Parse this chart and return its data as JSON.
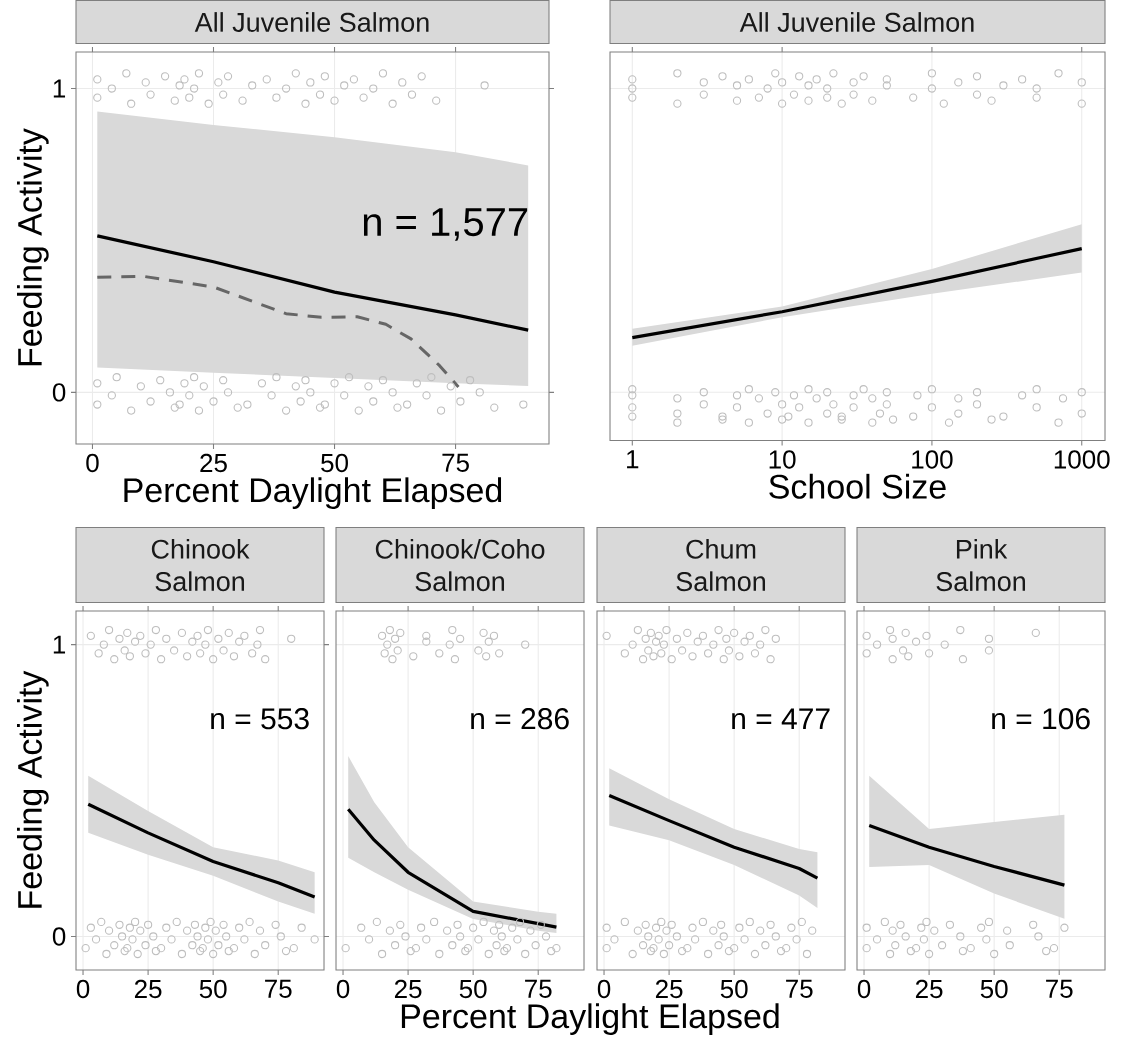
{
  "chart_data": [
    {
      "type": "line",
      "title": "All Juvenile Salmon",
      "xlabel": "Percent Daylight Elapsed",
      "ylabel": "Feeding Activity",
      "xlim": [
        -3.4,
        94.3
      ],
      "ylim": [
        -0.17,
        1.12
      ],
      "xticks": [
        0,
        25,
        50,
        75
      ],
      "yticks": [
        0,
        1
      ],
      "grid": true,
      "annotations": [
        "n = 1,577"
      ],
      "series": [
        {
          "type": "scatter",
          "marker": "circle",
          "color": "#bebebe",
          "x": [
            1,
            1,
            4,
            7,
            8,
            11,
            12,
            15,
            17,
            18,
            19,
            20,
            21,
            22,
            24,
            26,
            27,
            28,
            31,
            33,
            36,
            38,
            40,
            42,
            44,
            45,
            47,
            48,
            50,
            52,
            54,
            56,
            58,
            60,
            62,
            64,
            66,
            68,
            71,
            81
          ],
          "values": [
            1.03,
            0.97,
            1.0,
            1.05,
            0.95,
            1.02,
            0.98,
            1.04,
            0.96,
            1.01,
            1.03,
            0.97,
            1.0,
            1.05,
            0.95,
            1.02,
            0.98,
            1.04,
            0.96,
            1.01,
            1.03,
            0.97,
            1.0,
            1.05,
            0.95,
            1.02,
            0.98,
            1.04,
            0.96,
            1.01,
            1.03,
            0.97,
            1.0,
            1.05,
            0.95,
            1.02,
            0.98,
            1.04,
            0.96,
            1.01
          ]
        },
        {
          "type": "scatter",
          "marker": "circle",
          "color": "#bebebe",
          "x": [
            1,
            1,
            4,
            5,
            8,
            10,
            12,
            14,
            16,
            17,
            18,
            19,
            20,
            21,
            22,
            23,
            25,
            27,
            28,
            30,
            32,
            35,
            37,
            38,
            40,
            42,
            43,
            44,
            45,
            47,
            48,
            50,
            52,
            53,
            55,
            57,
            58,
            60,
            62,
            63,
            65,
            67,
            69,
            70,
            72,
            74,
            76,
            78,
            80,
            83,
            89
          ],
          "values": [
            -0.04,
            0.03,
            -0.01,
            0.05,
            -0.06,
            0.02,
            -0.03,
            0.04,
            0.0,
            -0.05,
            -0.04,
            0.03,
            -0.01,
            0.05,
            -0.06,
            0.02,
            -0.03,
            0.04,
            0.0,
            -0.05,
            -0.04,
            0.03,
            -0.01,
            0.05,
            -0.06,
            0.02,
            -0.03,
            0.04,
            0.0,
            -0.05,
            -0.04,
            0.03,
            -0.01,
            0.05,
            -0.06,
            0.02,
            -0.03,
            0.04,
            0.0,
            -0.05,
            -0.04,
            0.03,
            -0.01,
            0.05,
            -0.06,
            0.02,
            -0.03,
            0.04,
            0.0,
            -0.05,
            -0.04
          ]
        },
        {
          "type": "line",
          "color": "#000000",
          "x": [
            1,
            25,
            50,
            75,
            90
          ],
          "values": [
            0.515,
            0.43,
            0.33,
            0.255,
            0.205
          ],
          "upper": [
            0.924,
            0.88,
            0.84,
            0.79,
            0.747
          ],
          "lower": [
            0.082,
            0.065,
            0.047,
            0.03,
            0.021
          ]
        },
        {
          "type": "line",
          "color": "#666666",
          "line_style": "dashed",
          "x": [
            1,
            10.5,
            25,
            40,
            47.3,
            54.7,
            60.6,
            65.8,
            71.7,
            75.6
          ],
          "values": [
            0.379,
            0.382,
            0.347,
            0.259,
            0.247,
            0.249,
            0.224,
            0.176,
            0.088,
            0.018
          ]
        }
      ]
    },
    {
      "type": "line",
      "title": "All Juvenile Salmon",
      "xlabel": "School Size",
      "log": "x",
      "xlim": [
        0.71,
        1430
      ],
      "ylim": [
        -0.159,
        1.12
      ],
      "xticks": [
        1,
        10,
        100,
        1000
      ],
      "yticks": [
        0,
        1
      ],
      "grid": true,
      "tick_labels": "x",
      "series": [
        {
          "type": "scatter",
          "marker": "circle",
          "color": "#bebebe",
          "x": [
            1,
            1,
            1,
            2,
            2,
            3,
            3,
            4,
            5,
            5,
            6,
            7,
            8,
            9,
            10,
            10,
            12,
            13,
            15,
            15,
            17,
            20,
            20,
            22,
            25,
            30,
            30,
            35,
            40,
            50,
            50,
            75,
            100,
            100,
            120,
            150,
            200,
            200,
            250,
            300,
            400,
            500,
            500,
            700,
            1000,
            1000
          ],
          "values": [
            1.03,
            0.97,
            1.0,
            1.05,
            0.95,
            1.02,
            0.98,
            1.04,
            0.96,
            1.01,
            1.03,
            0.97,
            1.0,
            1.05,
            0.95,
            1.02,
            0.98,
            1.04,
            0.96,
            1.01,
            1.03,
            0.97,
            1.0,
            1.05,
            0.95,
            1.02,
            0.98,
            1.04,
            0.96,
            1.01,
            1.03,
            0.97,
            1.0,
            1.05,
            0.95,
            1.02,
            0.98,
            1.04,
            0.96,
            1.01,
            1.03,
            0.97,
            1.0,
            1.05,
            0.95,
            1.02
          ]
        },
        {
          "type": "scatter",
          "marker": "circle",
          "color": "#bebebe",
          "x": [
            1,
            1,
            1,
            1,
            2,
            2,
            2,
            3,
            3,
            4,
            4,
            5,
            5,
            6,
            6,
            7,
            8,
            9,
            10,
            10,
            11,
            12,
            13,
            15,
            15,
            17,
            20,
            20,
            22,
            25,
            25,
            30,
            30,
            35,
            40,
            40,
            45,
            50,
            50,
            55,
            75,
            80,
            100,
            100,
            130,
            150,
            150,
            200,
            200,
            250,
            300,
            400,
            500,
            500,
            700,
            750,
            1000,
            1000
          ],
          "values": [
            -0.08,
            -0.01,
            -0.05,
            0.01,
            -0.1,
            -0.02,
            -0.07,
            0.0,
            -0.04,
            -0.09,
            -0.08,
            -0.01,
            -0.05,
            0.01,
            -0.1,
            -0.02,
            -0.07,
            0.0,
            -0.04,
            -0.09,
            -0.08,
            -0.01,
            -0.05,
            0.01,
            -0.1,
            -0.02,
            -0.07,
            0.0,
            -0.04,
            -0.09,
            -0.08,
            -0.01,
            -0.05,
            0.01,
            -0.1,
            -0.02,
            -0.07,
            0.0,
            -0.04,
            -0.09,
            -0.08,
            -0.01,
            -0.05,
            0.01,
            -0.1,
            -0.02,
            -0.07,
            0.0,
            -0.04,
            -0.09,
            -0.08,
            -0.01,
            -0.05,
            0.01,
            -0.1,
            -0.02,
            -0.07,
            0.0
          ]
        },
        {
          "type": "line",
          "color": "#000000",
          "x": [
            1,
            10,
            100,
            1000
          ],
          "values": [
            0.18,
            0.265,
            0.365,
            0.473
          ],
          "upper": [
            0.209,
            0.282,
            0.406,
            0.553
          ],
          "lower": [
            0.153,
            0.247,
            0.324,
            0.394
          ]
        }
      ]
    },
    {
      "type": "line",
      "title": "Chinook Salmon",
      "ylabel": "Feeding Activity",
      "xlim": [
        -2.7,
        92.6
      ],
      "ylim": [
        -0.115,
        1.115
      ],
      "xticks": [
        0,
        25,
        50,
        75
      ],
      "yticks": [
        0,
        1
      ],
      "grid": true,
      "annotations": [
        "n = 553"
      ],
      "series": [
        {
          "type": "scatter",
          "marker": "circle",
          "color": "#bebebe",
          "x": [
            3,
            6,
            8,
            10,
            12,
            14,
            16,
            17,
            18,
            20,
            22,
            24,
            26,
            28,
            30,
            32,
            35,
            38,
            40,
            42,
            44,
            45,
            47,
            48,
            50,
            52,
            54,
            56,
            58,
            60,
            62,
            65,
            67,
            68,
            70,
            80
          ],
          "values": [
            1.03,
            0.97,
            1.0,
            1.05,
            0.95,
            1.02,
            0.98,
            1.04,
            0.96,
            1.01,
            1.03,
            0.97,
            1.0,
            1.05,
            0.95,
            1.02,
            0.98,
            1.04,
            0.96,
            1.01,
            1.03,
            0.97,
            1.0,
            1.05,
            0.95,
            1.02,
            0.98,
            1.04,
            0.96,
            1.01,
            1.03,
            0.97,
            1.0,
            1.05,
            0.95,
            1.02
          ]
        },
        {
          "type": "scatter",
          "marker": "circle",
          "color": "#bebebe",
          "x": [
            1,
            3,
            5,
            7,
            9,
            10,
            12,
            14,
            15,
            16,
            17,
            18,
            19,
            20,
            21,
            22,
            24,
            25,
            27,
            28,
            30,
            32,
            34,
            36,
            38,
            40,
            42,
            43,
            44,
            45,
            46,
            47,
            48,
            49,
            50,
            51,
            52,
            54,
            55,
            56,
            58,
            60,
            62,
            64,
            66,
            68,
            70,
            74,
            76,
            78,
            81,
            84,
            89
          ],
          "values": [
            -0.04,
            0.03,
            -0.01,
            0.05,
            -0.06,
            0.02,
            -0.03,
            0.04,
            0.0,
            -0.05,
            -0.04,
            0.03,
            -0.01,
            0.05,
            -0.06,
            0.02,
            -0.03,
            0.04,
            0.0,
            -0.05,
            -0.04,
            0.03,
            -0.01,
            0.05,
            -0.06,
            0.02,
            -0.03,
            0.04,
            0.0,
            -0.05,
            -0.04,
            0.03,
            -0.01,
            0.05,
            -0.06,
            0.02,
            -0.03,
            0.04,
            0.0,
            -0.05,
            -0.04,
            0.03,
            -0.01,
            0.05,
            -0.06,
            0.02,
            -0.03,
            0.04,
            0.0,
            -0.05,
            -0.04,
            0.03,
            -0.01
          ]
        },
        {
          "type": "line",
          "color": "#000000",
          "x": [
            2,
            25,
            50,
            75,
            89
          ],
          "values": [
            0.453,
            0.355,
            0.257,
            0.184,
            0.135
          ],
          "upper": [
            0.551,
            0.43,
            0.306,
            0.26,
            0.22
          ],
          "lower": [
            0.355,
            0.28,
            0.208,
            0.12,
            0.078
          ]
        }
      ]
    },
    {
      "type": "line",
      "title": "Chinook/Coho Salmon",
      "xlabel": "Percent Daylight Elapsed",
      "xlim": [
        -2.7,
        92.6
      ],
      "ylim": [
        -0.115,
        1.115
      ],
      "xticks": [
        0,
        25,
        50,
        75
      ],
      "yticks": [
        0,
        1
      ],
      "grid": true,
      "tick_labels": "x",
      "annotations": [
        "n = 286"
      ],
      "series": [
        {
          "type": "scatter",
          "marker": "circle",
          "color": "#bebebe",
          "x": [
            15,
            16,
            17,
            18,
            19,
            20,
            21,
            22,
            27,
            32,
            32,
            37,
            41,
            42,
            43,
            45,
            52,
            54,
            55,
            56,
            58,
            60,
            70
          ],
          "values": [
            1.03,
            0.97,
            1.0,
            1.05,
            0.95,
            1.02,
            0.98,
            1.04,
            0.96,
            1.01,
            1.03,
            0.97,
            1.0,
            1.05,
            0.95,
            1.02,
            0.98,
            1.04,
            0.96,
            1.01,
            1.03,
            0.97,
            1.0
          ]
        },
        {
          "type": "scatter",
          "marker": "circle",
          "color": "#bebebe",
          "x": [
            1,
            7,
            10,
            13,
            15,
            18,
            20,
            22,
            24,
            26,
            28,
            30,
            32,
            35,
            37,
            40,
            42,
            44,
            45,
            47,
            48,
            50,
            52,
            54,
            56,
            58,
            59,
            60,
            61,
            62,
            63,
            65,
            67,
            68,
            70,
            72,
            74,
            76,
            78,
            80,
            82
          ],
          "values": [
            -0.04,
            0.03,
            -0.01,
            0.05,
            -0.06,
            0.02,
            -0.03,
            0.04,
            0.0,
            -0.05,
            -0.04,
            0.03,
            -0.01,
            0.05,
            -0.06,
            0.02,
            -0.03,
            0.04,
            0.0,
            -0.05,
            -0.04,
            0.03,
            -0.01,
            0.05,
            -0.06,
            0.02,
            -0.03,
            0.04,
            0.0,
            -0.05,
            -0.04,
            0.03,
            -0.01,
            0.05,
            -0.06,
            0.02,
            -0.03,
            0.04,
            0.0,
            -0.05,
            -0.04
          ]
        },
        {
          "type": "line",
          "color": "#000000",
          "x": [
            2,
            12,
            25,
            50,
            75,
            82
          ],
          "values": [
            0.436,
            0.33,
            0.22,
            0.086,
            0.044,
            0.032
          ],
          "upper": [
            0.618,
            0.46,
            0.306,
            0.12,
            0.085,
            0.078
          ],
          "lower": [
            0.27,
            0.22,
            0.16,
            0.06,
            0.02,
            0.012
          ]
        }
      ]
    },
    {
      "type": "line",
      "title": "Chum Salmon",
      "xlim": [
        -2.7,
        92.6
      ],
      "ylim": [
        -0.115,
        1.115
      ],
      "xticks": [
        0,
        25,
        50,
        75
      ],
      "yticks": [
        0,
        1
      ],
      "grid": true,
      "tick_labels": "x",
      "annotations": [
        "n = 477"
      ],
      "series": [
        {
          "type": "scatter",
          "marker": "circle",
          "color": "#bebebe",
          "x": [
            1,
            8,
            11,
            13,
            15,
            16,
            17,
            18,
            19,
            20,
            21,
            22,
            23,
            24,
            26,
            28,
            30,
            32,
            34,
            36,
            38,
            40,
            42,
            44,
            46,
            47,
            48,
            50,
            52,
            54,
            56,
            58,
            60,
            62,
            64,
            66
          ],
          "values": [
            1.03,
            0.97,
            1.0,
            1.05,
            0.95,
            1.02,
            0.98,
            1.04,
            0.96,
            1.01,
            1.03,
            0.97,
            1.0,
            1.05,
            0.95,
            1.02,
            0.98,
            1.04,
            0.96,
            1.01,
            1.03,
            0.97,
            1.0,
            1.05,
            0.95,
            1.02,
            0.98,
            1.04,
            0.96,
            1.01,
            1.03,
            0.97,
            1.0,
            1.05,
            0.95,
            1.02
          ]
        },
        {
          "type": "scatter",
          "marker": "circle",
          "color": "#bebebe",
          "x": [
            1,
            1,
            4,
            8,
            11,
            13,
            15,
            16,
            17,
            18,
            19,
            20,
            21,
            22,
            23,
            24,
            25,
            26,
            28,
            30,
            32,
            34,
            35,
            38,
            40,
            42,
            44,
            45,
            46,
            48,
            50,
            52,
            54,
            56,
            58,
            60,
            62,
            64,
            66,
            68,
            70,
            72,
            74,
            76,
            78,
            80
          ],
          "values": [
            -0.04,
            0.03,
            -0.01,
            0.05,
            -0.06,
            0.02,
            -0.03,
            0.04,
            0.0,
            -0.05,
            -0.04,
            0.03,
            -0.01,
            0.05,
            -0.06,
            0.02,
            -0.03,
            0.04,
            0.0,
            -0.05,
            -0.04,
            0.03,
            -0.01,
            0.05,
            -0.06,
            0.02,
            -0.03,
            0.04,
            0.0,
            -0.05,
            -0.04,
            0.03,
            -0.01,
            0.05,
            -0.06,
            0.02,
            -0.03,
            0.04,
            0.0,
            -0.05,
            -0.04,
            0.03,
            -0.01,
            0.05,
            -0.06,
            0.02
          ]
        },
        {
          "type": "line",
          "color": "#000000",
          "x": [
            2,
            25,
            50,
            75,
            82
          ],
          "values": [
            0.483,
            0.397,
            0.306,
            0.233,
            0.2
          ],
          "upper": [
            0.576,
            0.47,
            0.368,
            0.3,
            0.289
          ],
          "lower": [
            0.38,
            0.33,
            0.245,
            0.14,
            0.098
          ]
        }
      ]
    },
    {
      "type": "line",
      "title": "Pink Salmon",
      "xlim": [
        -2.7,
        92.6
      ],
      "ylim": [
        -0.115,
        1.115
      ],
      "xticks": [
        0,
        25,
        50,
        75
      ],
      "yticks": [
        0,
        1
      ],
      "grid": true,
      "tick_labels": "x",
      "annotations": [
        "n = 106"
      ],
      "series": [
        {
          "type": "scatter",
          "marker": "circle",
          "color": "#bebebe",
          "x": [
            1,
            1,
            5,
            10,
            11,
            11,
            15,
            16,
            17,
            20,
            24,
            25,
            31,
            37,
            38,
            48,
            48,
            66
          ],
          "values": [
            1.03,
            0.97,
            1.0,
            1.05,
            0.95,
            1.02,
            0.98,
            1.04,
            0.96,
            1.01,
            1.03,
            0.97,
            1.0,
            1.05,
            0.95,
            1.02,
            0.98,
            1.04
          ]
        },
        {
          "type": "scatter",
          "marker": "circle",
          "color": "#bebebe",
          "x": [
            1,
            1,
            5,
            8,
            10,
            11,
            12,
            14,
            16,
            18,
            20,
            22,
            23,
            24,
            25,
            27,
            30,
            33,
            37,
            38,
            41,
            45,
            47,
            48,
            50,
            55,
            56,
            65,
            67,
            70,
            73,
            77
          ],
          "values": [
            -0.04,
            0.03,
            -0.01,
            0.05,
            -0.06,
            0.02,
            -0.03,
            0.04,
            0.0,
            -0.05,
            -0.04,
            0.03,
            -0.01,
            0.05,
            -0.06,
            0.02,
            -0.03,
            0.04,
            0.0,
            -0.05,
            -0.04,
            0.03,
            -0.01,
            0.05,
            -0.06,
            0.02,
            -0.03,
            0.04,
            0.0,
            -0.05,
            -0.04,
            0.03
          ]
        },
        {
          "type": "line",
          "color": "#000000",
          "x": [
            2,
            25,
            50,
            77
          ],
          "values": [
            0.38,
            0.306,
            0.24,
            0.176
          ],
          "upper": [
            0.551,
            0.368,
            0.392,
            0.417
          ],
          "lower": [
            0.238,
            0.245,
            0.147,
            0.061
          ]
        }
      ]
    }
  ]
}
